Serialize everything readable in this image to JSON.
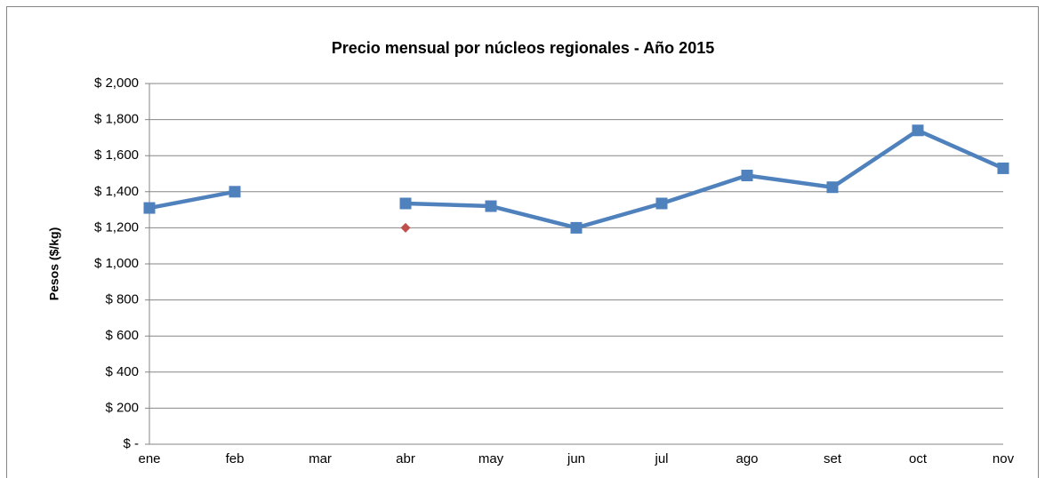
{
  "chart_data": {
    "type": "line",
    "title": "Precio mensual por núcleos regionales -  Año 2015",
    "y_label": "Pesos ($/kg)",
    "categories": [
      "ene",
      "feb",
      "mar",
      "abr",
      "may",
      "jun",
      "jul",
      "ago",
      "set",
      "oct",
      "nov"
    ],
    "series": [
      {
        "color": "#4f81bd",
        "marker": "square",
        "values": [
          1310,
          1400,
          null,
          1335,
          1320,
          1200,
          1335,
          1490,
          1425,
          1740,
          1530
        ]
      },
      {
        "color": "#c0504d",
        "marker": "diamond",
        "values": [
          null,
          null,
          null,
          1200,
          null,
          null,
          null,
          null,
          null,
          null,
          null
        ]
      }
    ],
    "ylim": [
      0,
      2000
    ],
    "yticks": [
      {
        "value": 0,
        "label": "$ -"
      },
      {
        "value": 200,
        "label": "$ 200"
      },
      {
        "value": 400,
        "label": "$ 400"
      },
      {
        "value": 600,
        "label": "$ 600"
      },
      {
        "value": 800,
        "label": "$ 800"
      },
      {
        "value": 1000,
        "label": "$ 1,000"
      },
      {
        "value": 1200,
        "label": "$ 1,200"
      },
      {
        "value": 1400,
        "label": "$ 1,400"
      },
      {
        "value": 1600,
        "label": "$ 1,600"
      },
      {
        "value": 1800,
        "label": "$ 1,800"
      },
      {
        "value": 2000,
        "label": "$ 2,000"
      }
    ],
    "grid": true
  }
}
